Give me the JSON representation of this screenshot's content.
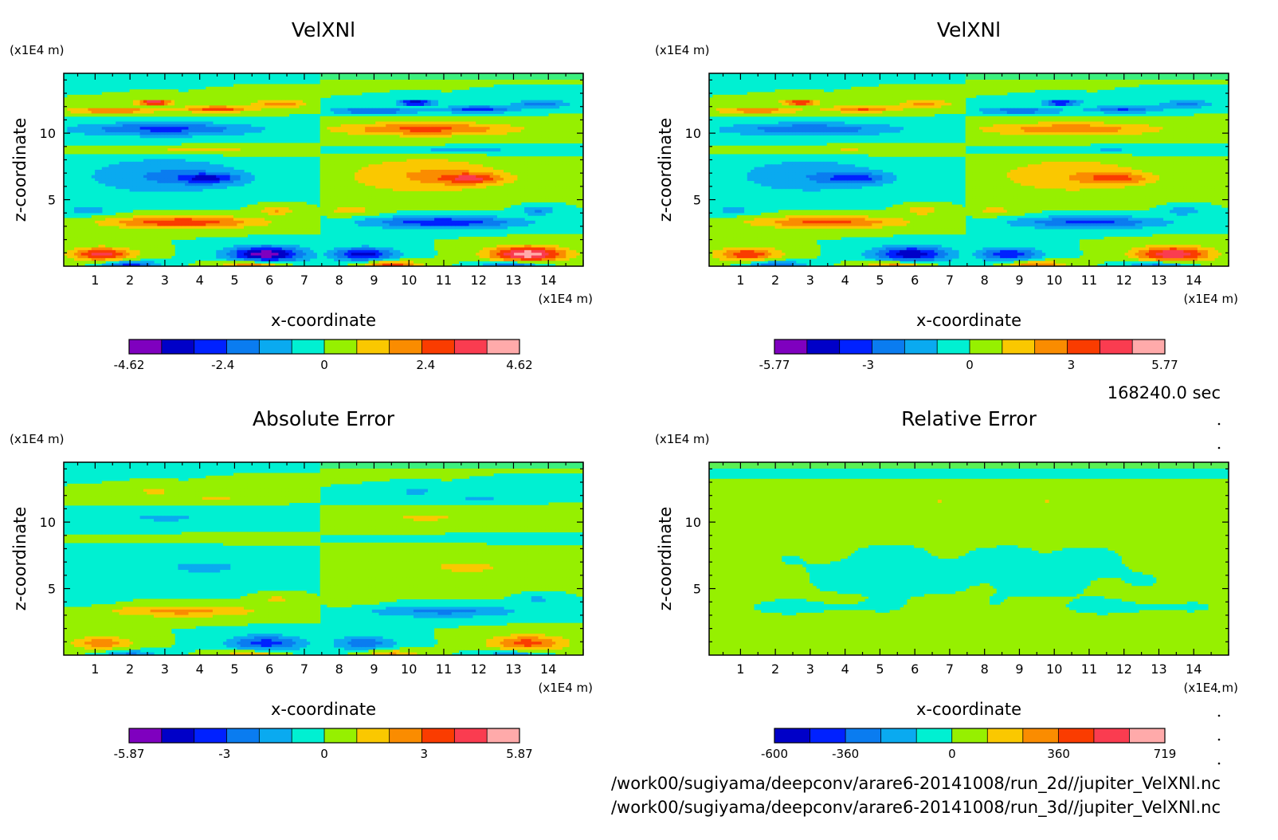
{
  "figure": {
    "time_label": "168240.0 sec",
    "files": [
      "/work00/sugiyama/deepconv/arare6-20141008/run_2d//jupiter_VelXNl.nc",
      "/work00/sugiyama/deepconv/arare6-20141008/run_3d//jupiter_VelXNl.nc"
    ]
  },
  "chart_data": [
    {
      "type": "heatmap",
      "title": "VelXNl",
      "xlabel": "x-coordinate",
      "ylabel": "z-coordinate",
      "x_unit": "(x1E4 m)",
      "y_unit": "(x1E4 m)",
      "x_ticks": [
        1,
        2,
        3,
        4,
        5,
        6,
        7,
        8,
        9,
        10,
        11,
        12,
        13,
        14
      ],
      "y_ticks": [
        5,
        10
      ],
      "xlim": [
        0.1,
        15.0
      ],
      "ylim": [
        0.0,
        14.5
      ],
      "colorbar": {
        "min": -4.62,
        "max": 4.62,
        "tick_labels": [
          "-4.62",
          "-2.4",
          "0",
          "2.4",
          "4.62"
        ],
        "tick_values": [
          -4.62,
          -2.4,
          0,
          2.4,
          4.62
        ]
      }
    },
    {
      "type": "heatmap",
      "title": "VelXNl",
      "xlabel": "x-coordinate",
      "ylabel": "z-coordinate",
      "x_unit": "(x1E4 m)",
      "y_unit": "(x1E4 m)",
      "x_ticks": [
        1,
        2,
        3,
        4,
        5,
        6,
        7,
        8,
        9,
        10,
        11,
        12,
        13,
        14
      ],
      "y_ticks": [
        5,
        10
      ],
      "xlim": [
        0.1,
        15.0
      ],
      "ylim": [
        0.0,
        14.5
      ],
      "colorbar": {
        "min": -5.77,
        "max": 5.77,
        "tick_labels": [
          "-5.77",
          "-3",
          "0",
          "3",
          "5.77"
        ],
        "tick_values": [
          -5.77,
          -3,
          0,
          3,
          5.77
        ]
      }
    },
    {
      "type": "heatmap",
      "title": "Absolute Error",
      "xlabel": "x-coordinate",
      "ylabel": "z-coordinate",
      "x_unit": "(x1E4 m)",
      "y_unit": "(x1E4 m)",
      "x_ticks": [
        1,
        2,
        3,
        4,
        5,
        6,
        7,
        8,
        9,
        10,
        11,
        12,
        13,
        14
      ],
      "y_ticks": [
        5,
        10
      ],
      "xlim": [
        0.1,
        15.0
      ],
      "ylim": [
        0.0,
        14.5
      ],
      "colorbar": {
        "min": -5.87,
        "max": 5.87,
        "tick_labels": [
          "-5.87",
          "-3",
          "0",
          "3",
          "5.87"
        ],
        "tick_values": [
          -5.87,
          -3,
          0,
          3,
          5.87
        ]
      }
    },
    {
      "type": "heatmap",
      "title": "Relative Error",
      "xlabel": "x-coordinate",
      "ylabel": "z-coordinate",
      "x_unit": "(x1E4 m)",
      "y_unit": "(x1E4 m)",
      "x_ticks": [
        1,
        2,
        3,
        4,
        5,
        6,
        7,
        8,
        9,
        10,
        11,
        12,
        13,
        14
      ],
      "y_ticks": [
        5,
        10
      ],
      "xlim": [
        0.1,
        15.0
      ],
      "ylim": [
        0.0,
        14.5
      ],
      "colorbar": {
        "min": -600,
        "max": 719,
        "tick_labels": [
          "-600",
          "-360",
          "0",
          "360",
          "719"
        ],
        "tick_values": [
          -600,
          -360,
          0,
          360,
          719
        ]
      }
    }
  ],
  "colors": {
    "levels_12": [
      "#7f00bf",
      "#0000c8",
      "#0021ff",
      "#0a7cf0",
      "#0aaaf0",
      "#00f0d2",
      "#96f000",
      "#fac800",
      "#fa8c00",
      "#fa3c00",
      "#fa3c50",
      "#ffaaaa"
    ],
    "levels_11": [
      "#0000c8",
      "#0021ff",
      "#0a7cf0",
      "#0aaaf0",
      "#00f0d2",
      "#96f000",
      "#fac800",
      "#fa8c00",
      "#fa3c00",
      "#fa3c50",
      "#ffaaaa"
    ]
  }
}
